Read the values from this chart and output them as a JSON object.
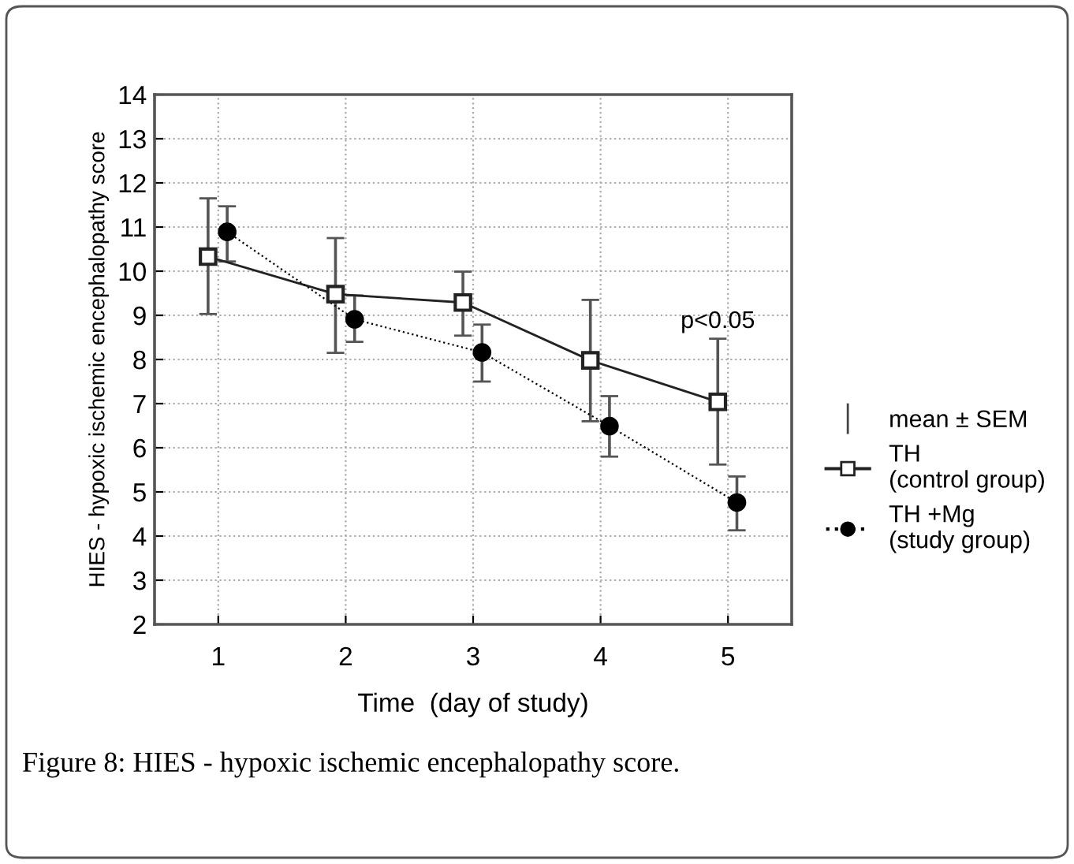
{
  "chart_data": {
    "type": "line",
    "xlabel": "Time  (day of study)",
    "ylabel": "HIES - hypoxic ischemic encephalopathy score",
    "xlim": [
      0.5,
      5.5
    ],
    "xticks": [
      1,
      2,
      3,
      4,
      5
    ],
    "ylim": [
      2,
      14
    ],
    "yticks": [
      2,
      3,
      4,
      5,
      6,
      7,
      8,
      9,
      10,
      11,
      12,
      13,
      14
    ],
    "grid": true,
    "legend": "right",
    "series": [
      {
        "name": "TH\n(control group)",
        "color": "#222222",
        "marker": "square",
        "line_style": "solid",
        "x": [
          0.92,
          1.92,
          2.92,
          3.92,
          4.92
        ],
        "values": [
          10.33,
          9.48,
          9.29,
          7.98,
          7.04
        ],
        "errors": [
          [
            9.03,
            11.65
          ],
          [
            8.15,
            10.75
          ],
          [
            8.54,
            9.99
          ],
          [
            6.6,
            9.35
          ],
          [
            5.62,
            8.47
          ]
        ]
      },
      {
        "name": "TH +Mg\n(study group)",
        "color": "#000000",
        "marker": "circle",
        "line_style": "dotted",
        "x": [
          1.07,
          2.07,
          3.07,
          4.07,
          5.07
        ],
        "values": [
          10.89,
          8.91,
          8.16,
          6.49,
          4.76
        ],
        "errors": [
          [
            10.22,
            11.47
          ],
          [
            8.4,
            9.45
          ],
          [
            7.5,
            8.79
          ],
          [
            5.8,
            7.17
          ],
          [
            4.13,
            5.35
          ]
        ]
      }
    ],
    "annotations": [
      {
        "text": "p<0.05",
        "x": 4.92,
        "y": 8.6
      },
      "mean ± SEM",
      "Figure 8: HIES - hypoxic ischemic encephalopathy score."
    ]
  }
}
